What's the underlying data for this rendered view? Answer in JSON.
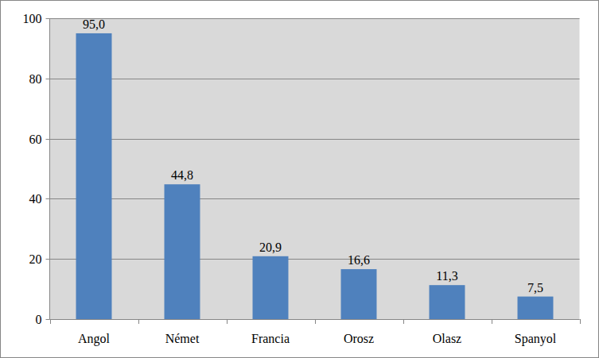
{
  "chart_data": {
    "type": "bar",
    "categories": [
      "Angol",
      "Német",
      "Francia",
      "Orosz",
      "Olasz",
      "Spanyol"
    ],
    "values": [
      95.0,
      44.8,
      20.9,
      16.6,
      11.3,
      7.5
    ],
    "value_labels": [
      "95,0",
      "44,8",
      "20,9",
      "16,6",
      "11,3",
      "7,5"
    ],
    "color": "#4f81bd",
    "ylim": [
      0,
      100
    ],
    "yticks": [
      0,
      20,
      40,
      60,
      80,
      100
    ],
    "grid": true,
    "data_labels": true
  }
}
